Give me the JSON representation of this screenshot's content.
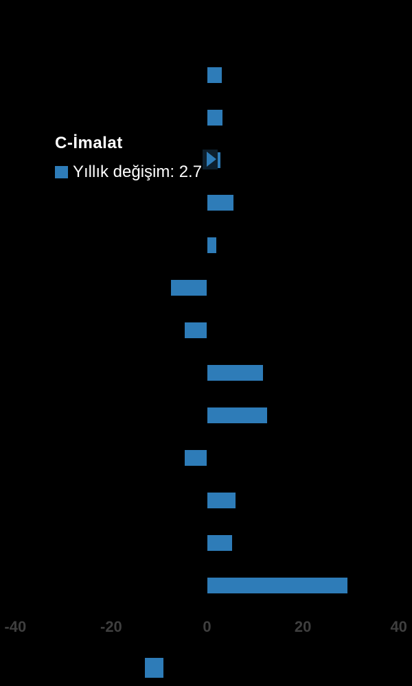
{
  "chart_data": {
    "type": "bar",
    "orientation": "horizontal",
    "values": [
      3.0,
      3.2,
      2.7,
      5.5,
      1.8,
      -7.5,
      -4.6,
      11.6,
      12.4,
      -4.6,
      5.9,
      5.2,
      29.2
    ],
    "highlight_index": 2,
    "highlighted_category": "C-İmalat",
    "highlighted_value": 2.7,
    "x_ticks": [
      "-40",
      "-20",
      "0",
      "20",
      "40"
    ],
    "xlim": [
      -40,
      40
    ],
    "grid": "off",
    "legend_position": "overlay-left",
    "bar_color": "#2e7cb8",
    "marker_color": "#0d1f2d",
    "axis_label_color": "#3f3f3f",
    "background_color": "#000000"
  },
  "tooltip": {
    "title": "C-İmalat",
    "legend_label": "Yıllık değişim: 2.7",
    "swatch_color": "#2e7cb8"
  },
  "bottom_legend": {
    "swatch_color": "#2e7cb8"
  }
}
